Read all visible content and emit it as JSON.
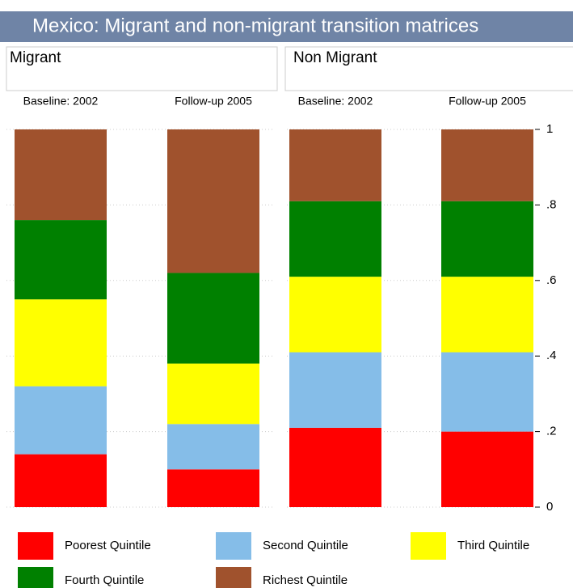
{
  "title": "Mexico: Migrant and non-migrant transition matrices",
  "chart_data": [
    {
      "type": "stacked_bar",
      "subtitle": "Migrant",
      "categories": [
        "Baseline: 2002",
        "Follow-up 2005"
      ],
      "ylim": [
        0,
        1
      ],
      "series": [
        {
          "name": "Poorest Quintile",
          "color": "#ff0000",
          "values": [
            0.14,
            0.1
          ]
        },
        {
          "name": "Second Quintile",
          "color": "#85bde8",
          "values": [
            0.18,
            0.12
          ]
        },
        {
          "name": "Third Quintile",
          "color": "#ffff00",
          "values": [
            0.23,
            0.16
          ]
        },
        {
          "name": "Fourth Quintile",
          "color": "#008000",
          "values": [
            0.21,
            0.24
          ]
        },
        {
          "name": "Richest Quintile",
          "color": "#a0522d",
          "values": [
            0.24,
            0.38
          ]
        }
      ]
    },
    {
      "type": "stacked_bar",
      "subtitle": "Non Migrant",
      "categories": [
        "Baseline: 2002",
        "Follow-up 2005"
      ],
      "ylim": [
        0,
        1
      ],
      "yticks": [
        0,
        {
          "value": 0.2,
          "label": ".2"
        },
        {
          "value": 0.4,
          "label": ".4"
        },
        {
          "value": 0.6,
          "label": ".6"
        },
        {
          "value": 0.8,
          "label": ".8"
        },
        1
      ],
      "legend": "bottom",
      "series": [
        {
          "name": "Poorest Quintile",
          "color": "#ff0000",
          "values": [
            0.21,
            0.2
          ]
        },
        {
          "name": "Second Quintile",
          "color": "#85bde8",
          "values": [
            0.2,
            0.21
          ]
        },
        {
          "name": "Third Quintile",
          "color": "#ffff00",
          "values": [
            0.2,
            0.2
          ]
        },
        {
          "name": "Fourth Quintile",
          "color": "#008000",
          "values": [
            0.2,
            0.2
          ]
        },
        {
          "name": "Richest Quintile",
          "color": "#a0522d",
          "values": [
            0.19,
            0.19
          ]
        }
      ]
    }
  ]
}
